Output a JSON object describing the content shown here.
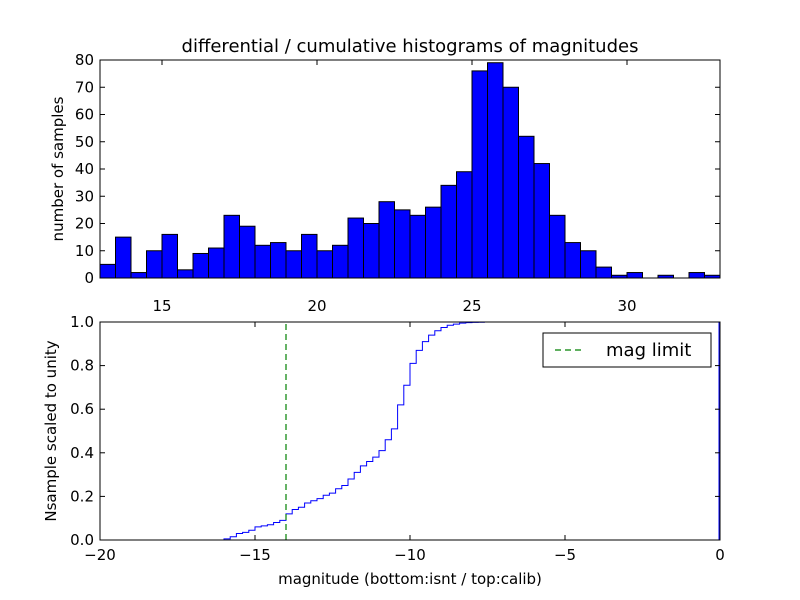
{
  "chart_data": [
    {
      "type": "bar",
      "title": "differential / cumulative histograms of magnitudes",
      "ylabel": "number of samples",
      "xlabel": "",
      "xlim": [
        13.0,
        33.0
      ],
      "ylim": [
        0,
        80
      ],
      "xticks": [
        "15",
        "20",
        "25",
        "30"
      ],
      "xtick_values": [
        15,
        20,
        25,
        30
      ],
      "yticks": [
        "0",
        "10",
        "20",
        "30",
        "40",
        "50",
        "60",
        "70",
        "80"
      ],
      "ytick_values": [
        0,
        10,
        20,
        30,
        40,
        50,
        60,
        70,
        80
      ],
      "bin_start": 13.0,
      "bin_width": 0.5,
      "values": [
        5,
        15,
        2,
        10,
        16,
        3,
        9,
        11,
        23,
        19,
        12,
        13,
        10,
        16,
        10,
        12,
        22,
        20,
        28,
        25,
        23,
        26,
        34,
        39,
        76,
        79,
        70,
        52,
        42,
        23,
        13,
        10,
        4,
        1,
        2,
        0,
        1,
        0,
        2,
        1
      ],
      "bar_color": "#0000ff"
    },
    {
      "type": "line",
      "ylabel": "Nsample scaled to unity",
      "xlabel": "magnitude (bottom:isnt / top:calib)",
      "xlim": [
        -20,
        0
      ],
      "ylim": [
        0.0,
        1.0
      ],
      "xticks": [
        "−20",
        "−15",
        "−10",
        "−5",
        "0"
      ],
      "xtick_values": [
        -20,
        -15,
        -10,
        -5,
        0
      ],
      "yticks": [
        "0.0",
        "0.2",
        "0.4",
        "0.6",
        "0.8",
        "1.0"
      ],
      "ytick_values": [
        0.0,
        0.2,
        0.4,
        0.6,
        0.8,
        1.0
      ],
      "series": [
        {
          "name": "cumulative",
          "color": "#0000ff",
          "style": "steps",
          "x": [
            -20,
            -16.2,
            -16.0,
            -15.8,
            -15.6,
            -15.4,
            -15.2,
            -15.0,
            -14.8,
            -14.6,
            -14.4,
            -14.2,
            -14.0,
            -13.8,
            -13.6,
            -13.4,
            -13.2,
            -13.0,
            -12.8,
            -12.6,
            -12.4,
            -12.2,
            -12.0,
            -11.8,
            -11.6,
            -11.4,
            -11.2,
            -11.0,
            -10.8,
            -10.6,
            -10.4,
            -10.2,
            -10.0,
            -9.8,
            -9.6,
            -9.4,
            -9.2,
            -9.0,
            -8.8,
            -8.6,
            -8.4,
            -8.2,
            -8.0,
            -7.8,
            -7.6,
            -7.4,
            -7.0,
            -6.5,
            0
          ],
          "y": [
            0.0,
            0.0,
            0.005,
            0.015,
            0.03,
            0.035,
            0.045,
            0.06,
            0.065,
            0.07,
            0.08,
            0.09,
            0.12,
            0.14,
            0.15,
            0.17,
            0.18,
            0.19,
            0.205,
            0.215,
            0.235,
            0.25,
            0.28,
            0.31,
            0.34,
            0.36,
            0.38,
            0.41,
            0.46,
            0.51,
            0.62,
            0.71,
            0.81,
            0.87,
            0.91,
            0.94,
            0.96,
            0.975,
            0.985,
            0.99,
            0.995,
            0.997,
            0.998,
            0.999,
            1.0,
            1.0,
            1.0,
            1.0,
            1.0
          ]
        },
        {
          "name": "mag limit",
          "color": "#008000",
          "style": "dashed",
          "x": [
            -14.0,
            -14.0
          ],
          "y": [
            0.0,
            1.0
          ]
        }
      ],
      "legend": {
        "position": "top-right",
        "entries": [
          "mag limit"
        ]
      }
    }
  ]
}
